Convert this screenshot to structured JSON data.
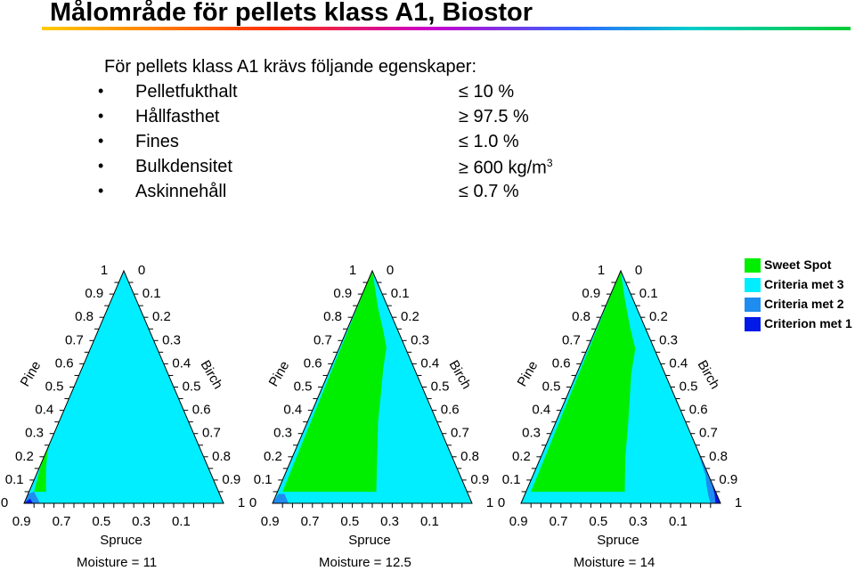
{
  "title": "Målområde för pellets klass A1, Biostor",
  "intro": "För pellets klass A1 krävs följande egenskaper:",
  "requirements": [
    {
      "name": "Pelletfukthalt",
      "op": "≤",
      "value": "10 %",
      "sup": ""
    },
    {
      "name": "Hållfasthet",
      "op": "≥",
      "value": "97.5 %",
      "sup": ""
    },
    {
      "name": "Fines",
      "op": "≤",
      "value": "1.0 %",
      "sup": ""
    },
    {
      "name": "Bulkdensitet",
      "op": "≥",
      "value": "600 kg/m",
      "sup": "3"
    },
    {
      "name": "Askinnehåll",
      "op": "≤",
      "value": "0.7 %",
      "sup": ""
    }
  ],
  "ternary": {
    "axis_left": "Pine",
    "axis_right": "Birch",
    "axis_bottom": "Spruce",
    "left_ticks": [
      "0",
      "0.1",
      "0.2",
      "0.3",
      "0.4",
      "0.5",
      "0.6",
      "0.7",
      "0.8",
      "0.9",
      "1"
    ],
    "right_ticks": [
      "0",
      "0.1",
      "0.2",
      "0.3",
      "0.4",
      "0.5",
      "0.6",
      "0.7",
      "0.8",
      "0.9",
      "1"
    ],
    "bottom_ticks": [
      "0.9",
      "0.7",
      "0.5",
      "0.3",
      "0.1"
    ]
  },
  "plots": [
    {
      "caption": "Moisture = 11"
    },
    {
      "caption": "Moisture = 12.5"
    },
    {
      "caption": "Moisture = 14"
    }
  ],
  "legend": [
    {
      "label": "Sweet Spot",
      "color": "#00ee00"
    },
    {
      "label": "Criteria met 3",
      "color": "#00eeff"
    },
    {
      "label": "Criteria met 2",
      "color": "#1f8cf0"
    },
    {
      "label": "Criterion met 1",
      "color": "#0018e8"
    }
  ]
}
